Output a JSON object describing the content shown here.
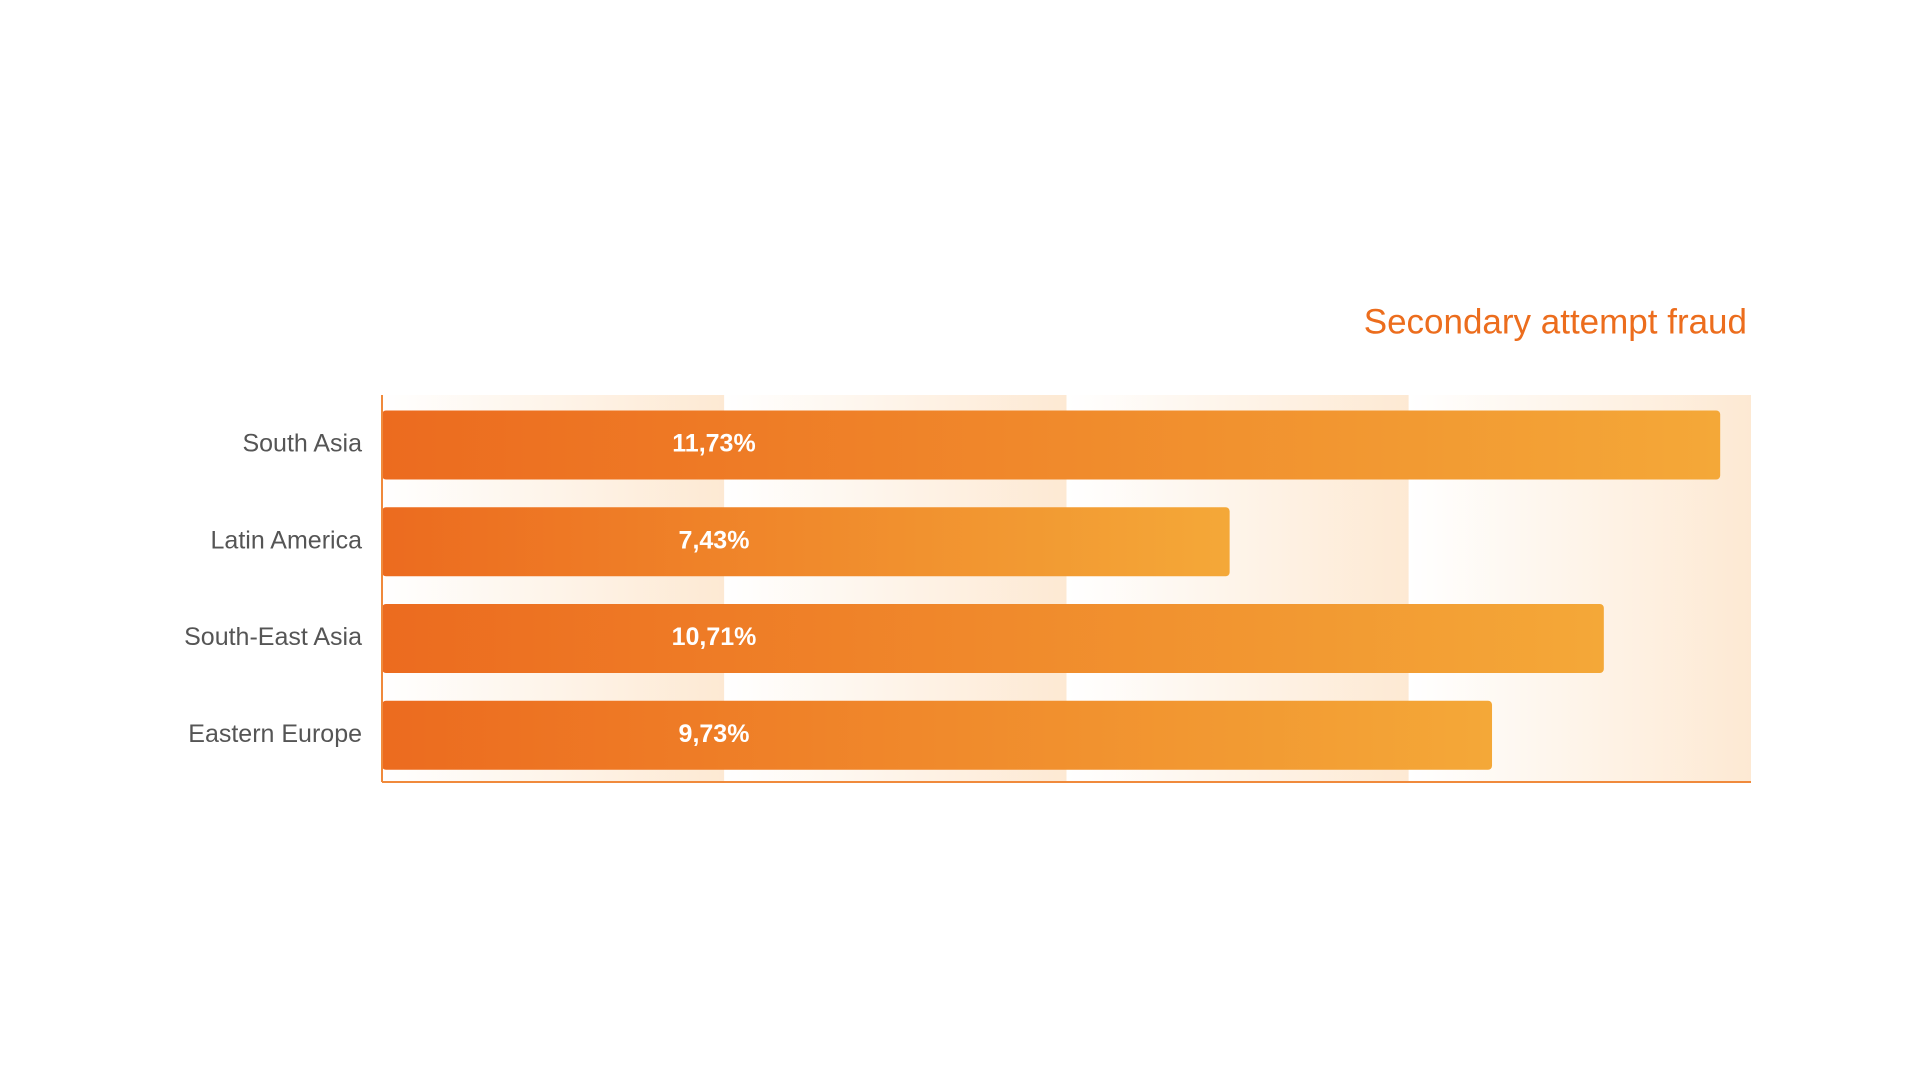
{
  "chart_data": {
    "type": "bar",
    "orientation": "horizontal",
    "title": "Secondary attempt fraud",
    "categories": [
      "South Asia",
      "Latin America",
      "South-East Asia",
      "Eastern Europe"
    ],
    "values": [
      11.73,
      7.43,
      10.71,
      9.73
    ],
    "value_labels": [
      "11,73%",
      "7,43%",
      "10,71%",
      "9,73%"
    ],
    "color": "#ec6b1f",
    "xlim": [
      0,
      12
    ]
  }
}
